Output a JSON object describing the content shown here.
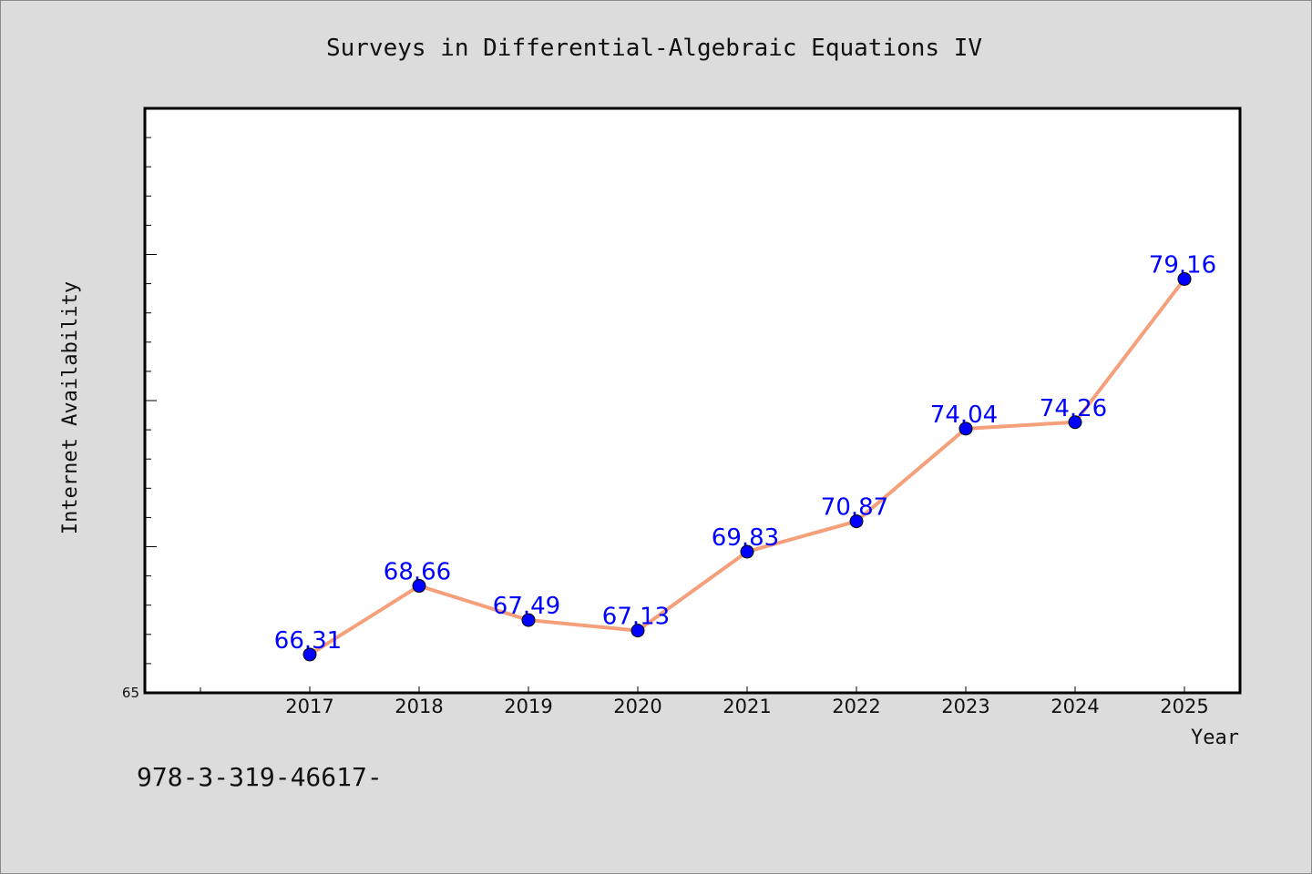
{
  "chart_data": {
    "type": "line",
    "title": "Surveys in Differential-Algebraic Equations IV",
    "xlabel": "Year",
    "ylabel": "Internet Availability",
    "categories": [
      "2017",
      "2018",
      "2019",
      "2020",
      "2021",
      "2022",
      "2023",
      "2024",
      "2025"
    ],
    "series": [
      {
        "values": [
          66.31,
          68.66,
          67.49,
          67.13,
          69.83,
          70.87,
          74.04,
          74.26,
          79.16
        ],
        "labels": [
          "66.31",
          "68.66",
          "67.49",
          "67.13",
          "69.83",
          "70.87",
          "74.04",
          "74.26",
          "79.16"
        ]
      }
    ],
    "ylim": [
      65,
      85
    ],
    "yticks_labeled": [
      "65"
    ],
    "grid": false,
    "legend": "none"
  },
  "footnote": "978-3-319-46617-",
  "colors": {
    "background": "#dcdcdc",
    "plot_background": "#ffffff",
    "line": "#f5a07a",
    "marker": "#0000ff",
    "data_label": "#0000ff"
  }
}
